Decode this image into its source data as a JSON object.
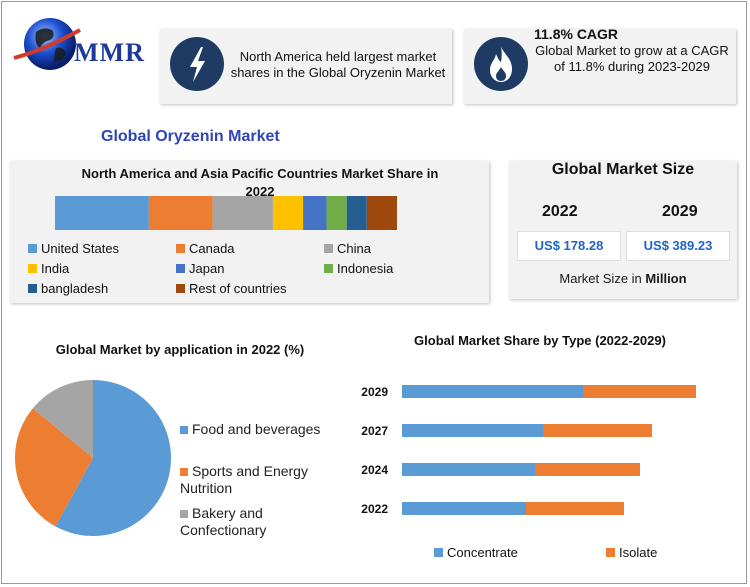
{
  "logo": {
    "text": "MMR"
  },
  "banner_left": {
    "icon": "lightning-icon",
    "text": "North America held largest market shares in the Global Oryzenin Market"
  },
  "banner_right": {
    "icon": "flame-icon",
    "title": "11.8% CAGR",
    "text": "Global Market to grow at a CAGR of 11.8% during 2023-2029"
  },
  "main_title": "Global Oryzenin Market",
  "market_size": {
    "title": "Global Market Size",
    "year_2022": "2022",
    "year_2029": "2029",
    "value_2022": "US$ 178.28",
    "value_2029": "US$ 389.23",
    "unit_prefix": "Market Size in ",
    "unit_bold": "Million"
  },
  "colors": {
    "us": "#5b9bd5",
    "canada": "#ed7d31",
    "china": "#a5a5a5",
    "india": "#ffc000",
    "japan": "#4472c4",
    "indonesia": "#70ad47",
    "bangladesh": "#255e91",
    "rest": "#9e480e",
    "accent": "#2f45b5",
    "icon_bg": "#1f3b63"
  },
  "chart_data": [
    {
      "type": "bar",
      "orientation": "horizontal-stacked",
      "title": "North America and Asia Pacific Countries Market Share in 2022",
      "categories": [
        "2022"
      ],
      "series": [
        {
          "name": "United States",
          "values": [
            28
          ],
          "color": "#5b9bd5"
        },
        {
          "name": "Canada",
          "values": [
            19
          ],
          "color": "#ed7d31"
        },
        {
          "name": "China",
          "values": [
            18
          ],
          "color": "#a5a5a5"
        },
        {
          "name": "India",
          "values": [
            9
          ],
          "color": "#ffc000"
        },
        {
          "name": "Japan",
          "values": [
            7
          ],
          "color": "#4472c4"
        },
        {
          "name": "Indonesia",
          "values": [
            6
          ],
          "color": "#70ad47"
        },
        {
          "name": "bangladesh",
          "values": [
            6
          ],
          "color": "#255e91"
        },
        {
          "name": "Rest of countries",
          "values": [
            9
          ],
          "color": "#9e480e"
        }
      ],
      "legend": "bottom"
    },
    {
      "type": "pie",
      "title": "Global Market by application in 2022 (%)",
      "categories": [
        "Food and beverages",
        "Sports and Energy Nutrition",
        "Bakery and Confectionary"
      ],
      "values": [
        58,
        28,
        14
      ],
      "colors": [
        "#5b9bd5",
        "#ed7d31",
        "#a5a5a5"
      ],
      "legend": "right"
    },
    {
      "type": "bar",
      "orientation": "horizontal-stacked",
      "title": "Global Market Share by Type (2022-2029)",
      "categories": [
        "2029",
        "2027",
        "2024",
        "2022"
      ],
      "series": [
        {
          "name": "Concentrate",
          "values": [
            181,
            141,
            133,
            124
          ],
          "color": "#5b9bd5"
        },
        {
          "name": "Isolate",
          "values": [
            113,
            109,
            105,
            98
          ],
          "color": "#ed7d31"
        }
      ],
      "xlim": [
        0,
        300
      ],
      "legend": "bottom"
    }
  ]
}
